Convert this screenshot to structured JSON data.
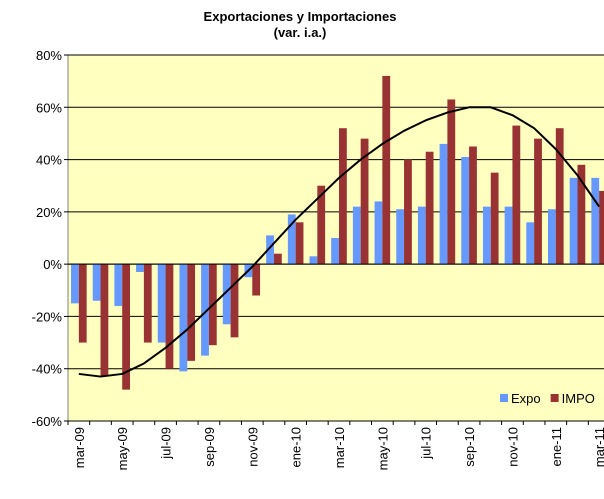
{
  "chart_data": {
    "type": "bar",
    "title": "Exportaciones  y Importaciones",
    "subtitle": "(var. i.a.)",
    "categories": [
      "mar-09",
      null,
      "may-09",
      null,
      "jul-09",
      null,
      "sep-09",
      null,
      "nov-09",
      null,
      "ene-10",
      null,
      "mar-10",
      null,
      "may-10",
      null,
      "jul-10",
      null,
      "sep-10",
      null,
      "nov-10",
      null,
      "ene-11",
      null,
      "mar-11"
    ],
    "series": [
      {
        "name": "Expo",
        "color": "#6699ff",
        "values": [
          -15,
          -14,
          -16,
          -3,
          -30,
          -41,
          -35,
          -23,
          -5,
          11,
          19,
          3,
          10,
          22,
          24,
          21,
          22,
          46,
          41,
          22,
          22,
          16,
          21,
          33,
          33
        ]
      },
      {
        "name": "IMPO",
        "color": "#993333",
        "values": [
          -30,
          -43,
          -48,
          -30,
          -40,
          -37,
          -31,
          -28,
          -12,
          4,
          16,
          30,
          52,
          48,
          72,
          40,
          43,
          63,
          45,
          35,
          53,
          48,
          52,
          38,
          28
        ]
      }
    ],
    "trend": {
      "color": "#000000",
      "values": [
        -42,
        -43,
        -42,
        -38,
        -32,
        -25,
        -17,
        -9,
        -1,
        8,
        17,
        25,
        33,
        40,
        46,
        51,
        55,
        58,
        60,
        60,
        57,
        52,
        44,
        34,
        22
      ]
    },
    "ylim": [
      -60,
      80
    ],
    "yticks": [
      {
        "value": -60,
        "label": "-60%"
      },
      {
        "value": -40,
        "label": "-40%"
      },
      {
        "value": -20,
        "label": "-20%"
      },
      {
        "value": 0,
        "label": "0%"
      },
      {
        "value": 20,
        "label": "20%"
      },
      {
        "value": 40,
        "label": "40%"
      },
      {
        "value": 60,
        "label": "60%"
      },
      {
        "value": 80,
        "label": "80%"
      }
    ],
    "grid": true,
    "legend": "bottom-right",
    "background": "#ffffc0"
  }
}
